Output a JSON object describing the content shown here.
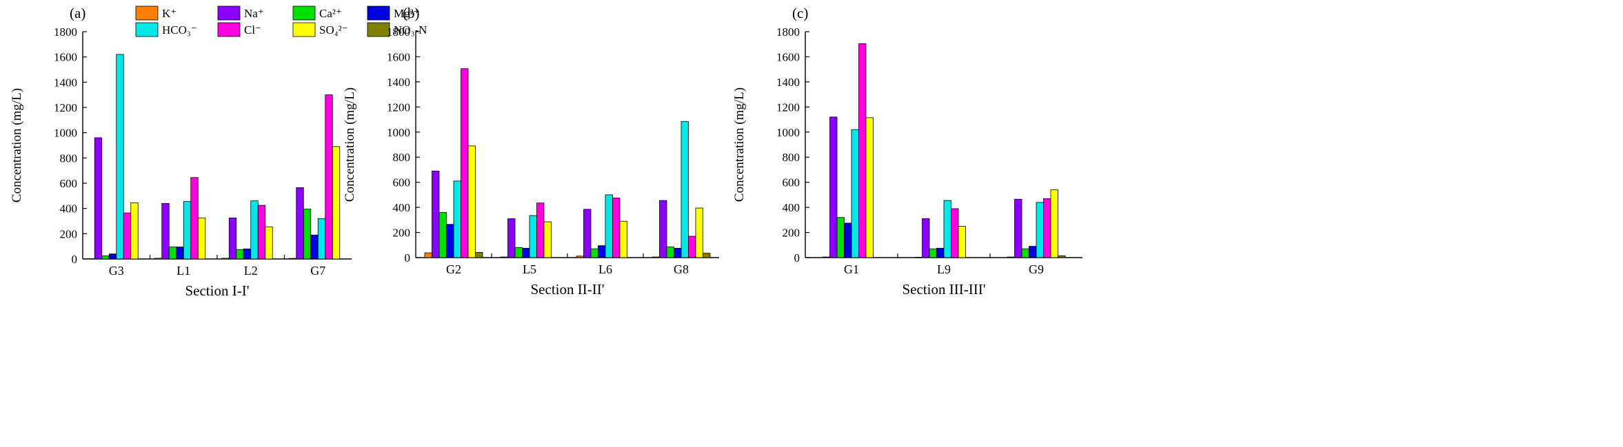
{
  "legend": {
    "items": [
      {
        "key": "K",
        "label": "K⁺",
        "color": "#FF7F00"
      },
      {
        "key": "Na",
        "label": "Na⁺",
        "color": "#8B00FF"
      },
      {
        "key": "Ca",
        "label": "Ca²⁺",
        "color": "#00E000"
      },
      {
        "key": "Mg",
        "label": "Mg²⁺",
        "color": "#0000E0"
      },
      {
        "key": "HCO3",
        "label": "HCO₃⁻",
        "color": "#00E8E8"
      },
      {
        "key": "Cl",
        "label": "Cl⁻",
        "color": "#FF00E0"
      },
      {
        "key": "SO4",
        "label": "SO₄²⁻",
        "color": "#FFFF00"
      },
      {
        "key": "NO3N",
        "label": "NO₃-N",
        "color": "#808000"
      }
    ]
  },
  "chart_data": [
    {
      "type": "bar",
      "panel_label": "(a)",
      "title": "",
      "xlabel": "Section I-I'",
      "ylabel": "Concentration (mg/L)",
      "ylim": [
        0,
        1800
      ],
      "yticks": [
        0,
        200,
        400,
        600,
        800,
        1000,
        1200,
        1400,
        1600,
        1800
      ],
      "categories": [
        "G3",
        "L1",
        "L2",
        "G7"
      ],
      "series": [
        {
          "name": "K⁺",
          "values": [
            2,
            6,
            6,
            5
          ]
        },
        {
          "name": "Na⁺",
          "values": [
            960,
            440,
            325,
            565
          ]
        },
        {
          "name": "Ca²⁺",
          "values": [
            25,
            95,
            75,
            395
          ]
        },
        {
          "name": "Mg²⁺",
          "values": [
            40,
            95,
            80,
            190
          ]
        },
        {
          "name": "HCO₃⁻",
          "values": [
            1620,
            455,
            460,
            320
          ]
        },
        {
          "name": "Cl⁻",
          "values": [
            365,
            645,
            425,
            1300
          ]
        },
        {
          "name": "SO₄²⁻",
          "values": [
            445,
            325,
            255,
            890
          ]
        },
        {
          "name": "NO₃-N",
          "values": [
            0,
            0,
            0,
            0
          ]
        }
      ]
    },
    {
      "type": "bar",
      "panel_label": "(b)",
      "title": "",
      "xlabel": "Section II-II'",
      "ylabel": "Concentration (mg/L)",
      "ylim": [
        0,
        1800
      ],
      "yticks": [
        0,
        200,
        400,
        600,
        800,
        1000,
        1200,
        1400,
        1600,
        1800
      ],
      "categories": [
        "G2",
        "L5",
        "L6",
        "G8"
      ],
      "series": [
        {
          "name": "K⁺",
          "values": [
            38,
            5,
            12,
            5
          ]
        },
        {
          "name": "Na⁺",
          "values": [
            690,
            310,
            385,
            455
          ]
        },
        {
          "name": "Ca²⁺",
          "values": [
            360,
            80,
            70,
            85
          ]
        },
        {
          "name": "Mg²⁺",
          "values": [
            265,
            75,
            95,
            75
          ]
        },
        {
          "name": "HCO₃⁻",
          "values": [
            610,
            335,
            500,
            1085
          ]
        },
        {
          "name": "Cl⁻",
          "values": [
            1505,
            435,
            475,
            170
          ]
        },
        {
          "name": "SO₄²⁻",
          "values": [
            890,
            285,
            290,
            395
          ]
        },
        {
          "name": "NO₃-N",
          "values": [
            42,
            0,
            0,
            35
          ]
        }
      ]
    },
    {
      "type": "bar",
      "panel_label": "(c)",
      "title": "",
      "xlabel": "Section III-III'",
      "ylabel": "Concentration (mg/L)",
      "ylim": [
        0,
        1800
      ],
      "yticks": [
        0,
        200,
        400,
        600,
        800,
        1000,
        1200,
        1400,
        1600,
        1800
      ],
      "categories": [
        "G1",
        "L9",
        "G9"
      ],
      "series": [
        {
          "name": "K⁺",
          "values": [
            5,
            3,
            5
          ]
        },
        {
          "name": "Na⁺",
          "values": [
            1120,
            310,
            465
          ]
        },
        {
          "name": "Ca²⁺",
          "values": [
            320,
            70,
            70
          ]
        },
        {
          "name": "Mg²⁺",
          "values": [
            275,
            75,
            90
          ]
        },
        {
          "name": "HCO₃⁻",
          "values": [
            1020,
            455,
            440
          ]
        },
        {
          "name": "Cl⁻",
          "values": [
            1705,
            390,
            470
          ]
        },
        {
          "name": "SO₄²⁻",
          "values": [
            1115,
            250,
            540
          ]
        },
        {
          "name": "NO₃-N",
          "values": [
            0,
            0,
            15
          ]
        }
      ]
    }
  ]
}
